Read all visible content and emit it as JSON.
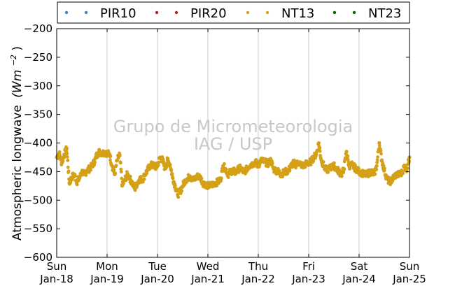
{
  "chart_data": {
    "type": "scatter",
    "ylabel": "Atmospheric longwave",
    "ylabel_unit": "(Wm",
    "ylabel_unit_exp": "−2",
    "ylabel_unit_close": ")",
    "ylim": [
      -600,
      -200
    ],
    "yticks": [
      -200,
      -250,
      -300,
      -350,
      -400,
      -450,
      -500,
      -550,
      -600
    ],
    "ytick_labels": [
      "−200",
      "−250",
      "−300",
      "−350",
      "−400",
      "−450",
      "−500",
      "−550",
      "−600"
    ],
    "xlim": [
      0,
      7
    ],
    "xticks": [
      0,
      1,
      2,
      3,
      4,
      5,
      6,
      7
    ],
    "xtick_labels_line1": [
      "Sun",
      "Mon",
      "Tue",
      "Wed",
      "Thu",
      "Fri",
      "Sat",
      "Sun"
    ],
    "xtick_labels_line2": [
      "Jan-18",
      "Jan-19",
      "Jan-20",
      "Jan-21",
      "Jan-22",
      "Jan-23",
      "Jan-24",
      "Jan-25"
    ],
    "grid": "vertical",
    "legend_placement": "top",
    "watermark": [
      "Grupo de Micrometeorologia",
      "IAG / USP"
    ],
    "series": [
      {
        "name": "PIR10",
        "color": "#4682b4",
        "x": [],
        "y": []
      },
      {
        "name": "PIR20",
        "color": "#b22222",
        "x": [],
        "y": []
      },
      {
        "name": "NT13",
        "color": "#d4a017",
        "x": [
          0.0,
          0.05,
          0.1,
          0.15,
          0.2,
          0.25,
          0.3,
          0.35,
          0.4,
          0.45,
          0.5,
          0.55,
          0.6,
          0.65,
          0.7,
          0.75,
          0.8,
          0.85,
          0.9,
          0.95,
          1.0,
          1.05,
          1.1,
          1.15,
          1.2,
          1.25,
          1.3,
          1.35,
          1.4,
          1.45,
          1.5,
          1.55,
          1.6,
          1.65,
          1.7,
          1.75,
          1.8,
          1.85,
          1.9,
          1.95,
          2.0,
          2.05,
          2.1,
          2.15,
          2.2,
          2.25,
          2.3,
          2.35,
          2.4,
          2.45,
          2.5,
          2.55,
          2.6,
          2.65,
          2.7,
          2.75,
          2.8,
          2.85,
          2.9,
          2.95,
          3.0,
          3.05,
          3.1,
          3.15,
          3.2,
          3.25,
          3.3,
          3.35,
          3.4,
          3.45,
          3.5,
          3.55,
          3.6,
          3.65,
          3.7,
          3.75,
          3.8,
          3.85,
          3.9,
          3.95,
          4.0,
          4.05,
          4.1,
          4.15,
          4.2,
          4.25,
          4.3,
          4.35,
          4.4,
          4.45,
          4.5,
          4.55,
          4.6,
          4.65,
          4.7,
          4.75,
          4.8,
          4.85,
          4.9,
          4.95,
          5.0,
          5.05,
          5.1,
          5.15,
          5.2,
          5.25,
          5.3,
          5.35,
          5.4,
          5.45,
          5.5,
          5.55,
          5.6,
          5.65,
          5.7,
          5.75,
          5.8,
          5.85,
          5.9,
          5.95,
          6.0,
          6.05,
          6.1,
          6.15,
          6.2,
          6.25,
          6.3,
          6.35,
          6.4,
          6.45,
          6.5,
          6.55,
          6.6,
          6.65,
          6.7,
          6.75,
          6.8,
          6.85,
          6.9,
          6.95,
          7.0
        ],
        "y": [
          -425,
          -418,
          -435,
          -420,
          -410,
          -470,
          -460,
          -455,
          -468,
          -462,
          -450,
          -455,
          -448,
          -445,
          -440,
          -432,
          -420,
          -415,
          -418,
          -416,
          -418,
          -420,
          -440,
          -455,
          -430,
          -420,
          -475,
          -465,
          -455,
          -462,
          -470,
          -480,
          -470,
          -462,
          -465,
          -455,
          -448,
          -440,
          -438,
          -442,
          -440,
          -425,
          -430,
          -445,
          -430,
          -438,
          -460,
          -475,
          -490,
          -485,
          -475,
          -465,
          -462,
          -458,
          -465,
          -462,
          -458,
          -460,
          -470,
          -472,
          -475,
          -474,
          -472,
          -470,
          -468,
          -465,
          -440,
          -445,
          -455,
          -450,
          -448,
          -452,
          -446,
          -444,
          -450,
          -448,
          -442,
          -438,
          -436,
          -434,
          -440,
          -430,
          -432,
          -434,
          -436,
          -430,
          -445,
          -448,
          -450,
          -455,
          -452,
          -450,
          -448,
          -440,
          -435,
          -438,
          -434,
          -438,
          -440,
          -436,
          -435,
          -432,
          -425,
          -420,
          -400,
          -430,
          -440,
          -448,
          -445,
          -442,
          -440,
          -445,
          -450,
          -455,
          -445,
          -415,
          -440,
          -438,
          -442,
          -446,
          -450,
          -452,
          -455,
          -455,
          -452,
          -450,
          -455,
          -440,
          -400,
          -430,
          -448,
          -462,
          -468,
          -465,
          -458,
          -455,
          -455,
          -452,
          -440,
          -445,
          -425
        ]
      },
      {
        "name": "NT23",
        "color": "#006400",
        "x": [],
        "y": []
      }
    ]
  }
}
